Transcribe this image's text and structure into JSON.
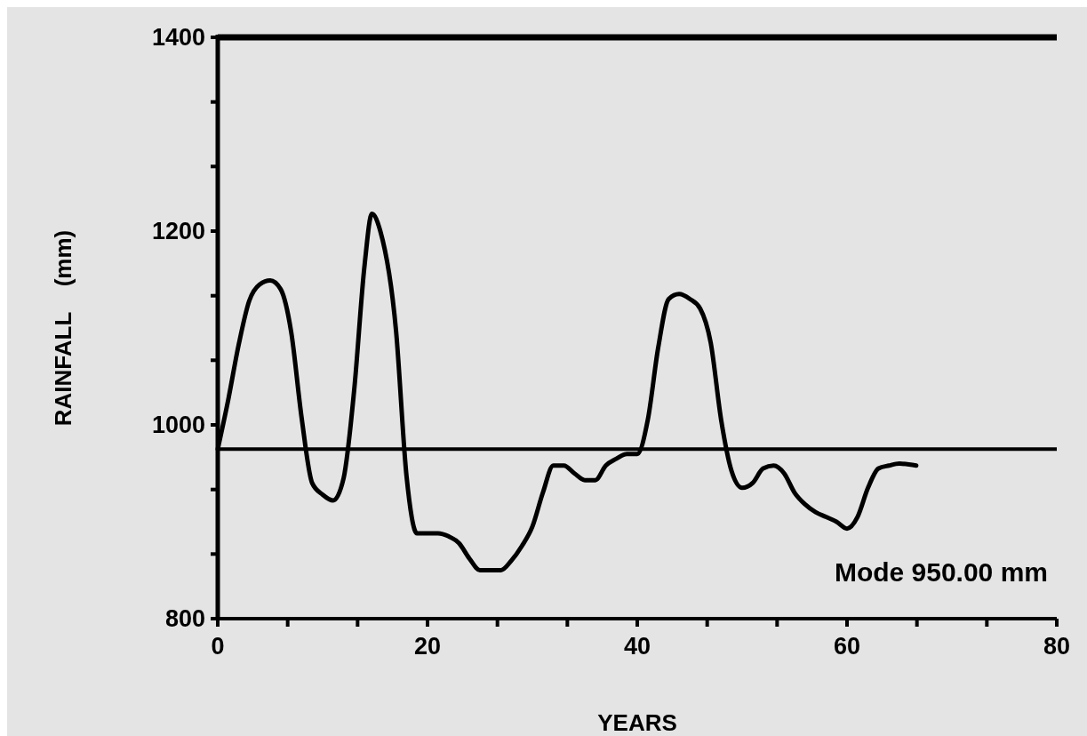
{
  "chart_data": {
    "type": "line",
    "xlabel": "YEARS",
    "ylabel": "RAINFALL    (mm)",
    "xlim": [
      0,
      80
    ],
    "xticks": [
      0,
      {
        "value": 6.667,
        "label": null
      },
      {
        "value": 13.333,
        "label": null
      },
      20,
      {
        "value": 26.667,
        "label": null
      },
      {
        "value": 33.333,
        "label": null
      },
      40,
      {
        "value": 46.667,
        "label": null
      },
      {
        "value": 53.333,
        "label": null
      },
      60,
      {
        "value": 66.667,
        "label": null
      },
      {
        "value": 73.333,
        "label": null
      },
      80
    ],
    "ylim": [
      800,
      1400
    ],
    "yticks": [
      800,
      {
        "value": 866.7,
        "label": null
      },
      {
        "value": 933.3,
        "label": null
      },
      1000,
      {
        "value": 1066.7,
        "label": null
      },
      {
        "value": 1133.3,
        "label": null
      },
      1200,
      {
        "value": 1266.7,
        "label": null
      },
      {
        "value": 1333.3,
        "label": null
      },
      1400
    ],
    "grid": false,
    "marker": "none",
    "line_style": "solid",
    "ref_lines": [
      {
        "axis": "y",
        "value": 975,
        "color": "#000000"
      }
    ],
    "annotations": [
      "Mode 950.00 mm"
    ],
    "series": [
      {
        "color": "#000000",
        "x": [
          0,
          1,
          2,
          3,
          4,
          5,
          6,
          7,
          8,
          9,
          10,
          11,
          12,
          13,
          14,
          14.7,
          15.5,
          17,
          18,
          19,
          20,
          21,
          22,
          23,
          24,
          25,
          26,
          27,
          28,
          29,
          30,
          31,
          32,
          33,
          34,
          35,
          36,
          37,
          38,
          39,
          40,
          41,
          42,
          43,
          44,
          45,
          46,
          47,
          48,
          49,
          50,
          51,
          52,
          53,
          54,
          55,
          56,
          57,
          58,
          59,
          60,
          61,
          62,
          63,
          64,
          65,
          66.6
        ],
        "values": [
          975,
          1026,
          1083,
          1128,
          1145,
          1149,
          1140,
          1096,
          1007,
          940,
          928,
          922,
          945,
          1035,
          1165,
          1218,
          1200,
          1097,
          947,
          888,
          888,
          888,
          885,
          878,
          862,
          850,
          850,
          850,
          860,
          875,
          895,
          930,
          958,
          958,
          950,
          943,
          943,
          958,
          965,
          970,
          970,
          1005,
          1080,
          1130,
          1135,
          1130,
          1120,
          1085,
          1005,
          952,
          935,
          940,
          955,
          958,
          950,
          930,
          918,
          910,
          905,
          900,
          893,
          905,
          935,
          955,
          958,
          960,
          958
        ]
      }
    ]
  }
}
